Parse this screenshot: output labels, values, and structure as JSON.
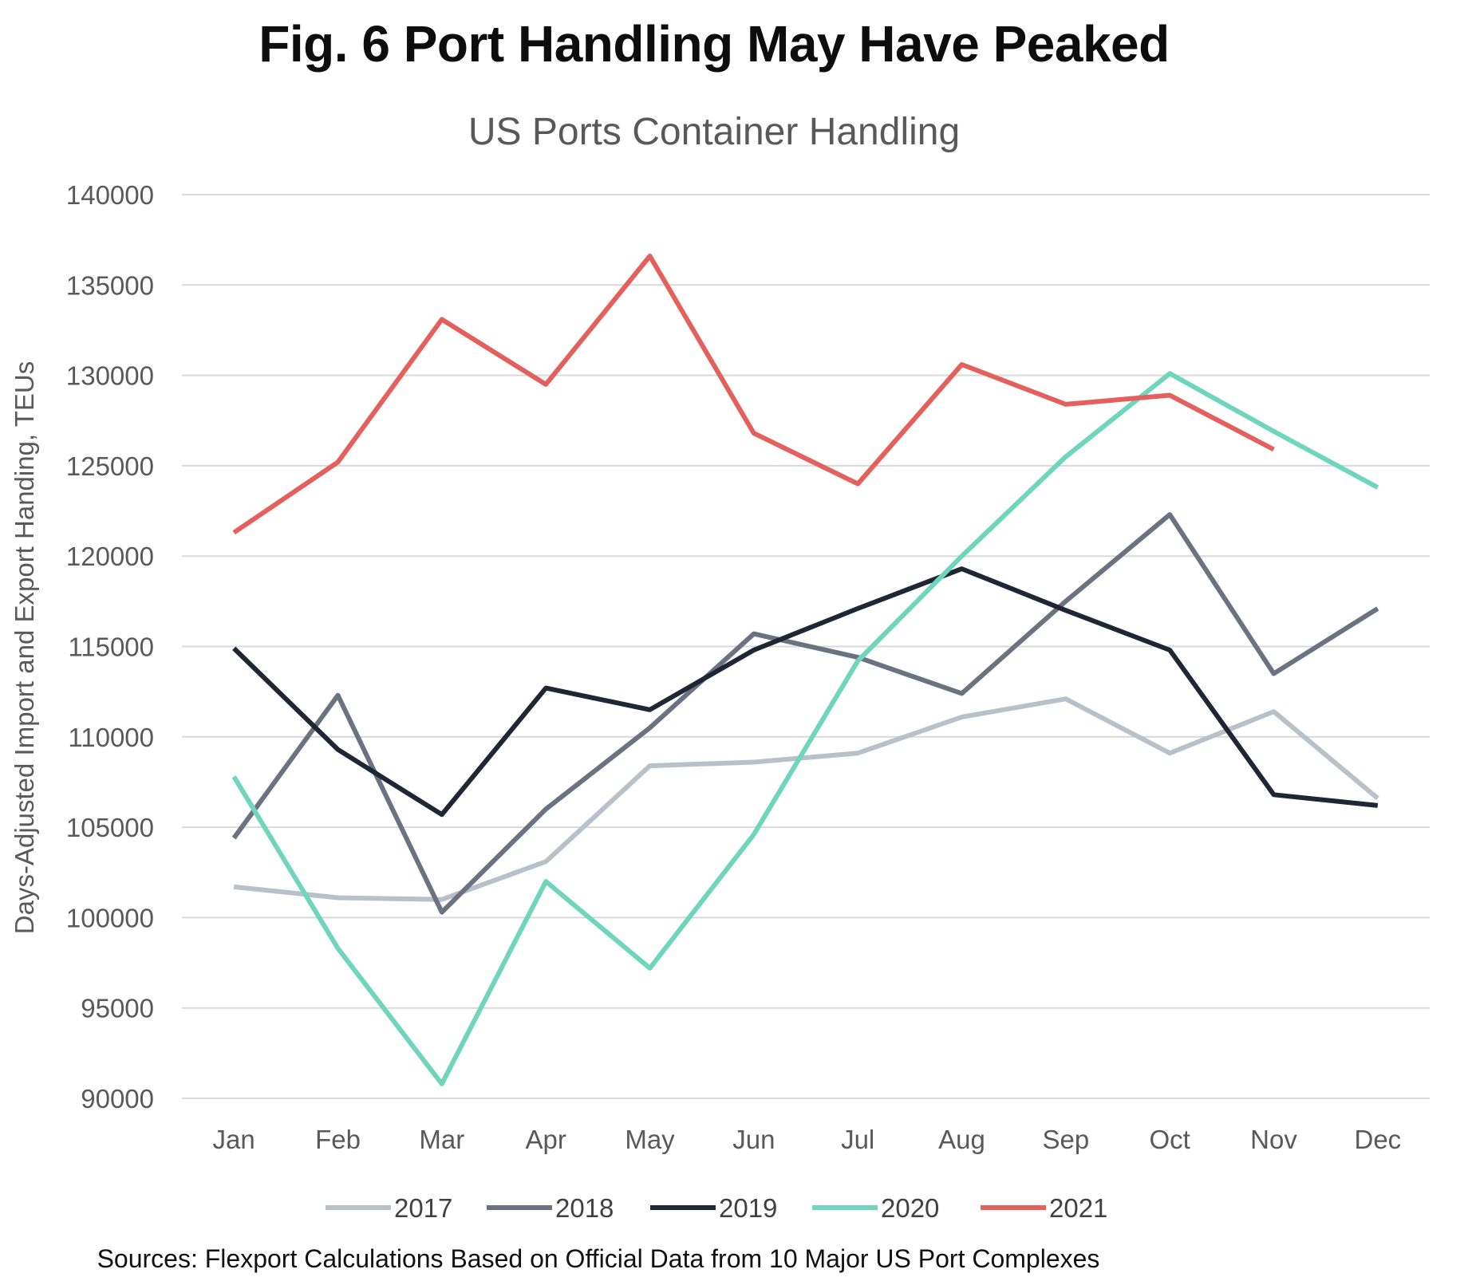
{
  "figure": {
    "title": "Fig. 6 Port Handling May Have Peaked",
    "source_note": "Sources: Flexport Calculations Based on Official Data from 10 Major US Port Complexes"
  },
  "chart_data": {
    "type": "line",
    "title": "US Ports Container Handling",
    "xlabel": "",
    "ylabel": "Days-Adjusted Import and Export Handing, TEUs",
    "categories": [
      "Jan",
      "Feb",
      "Mar",
      "Apr",
      "May",
      "Jun",
      "Jul",
      "Aug",
      "Sep",
      "Oct",
      "Nov",
      "Dec"
    ],
    "ylim": [
      90000,
      140000
    ],
    "yticks": [
      90000,
      95000,
      100000,
      105000,
      110000,
      115000,
      120000,
      125000,
      130000,
      135000,
      140000
    ],
    "ytick_labels": [
      "90000",
      "95000",
      "100000",
      "105000",
      "110000",
      "115000",
      "120000",
      "125000",
      "130000",
      "135000",
      "140000"
    ],
    "grid": "horizontal",
    "legend_position": "bottom",
    "series": [
      {
        "name": "2017",
        "color": "#b8c0c9",
        "values": [
          101700,
          101100,
          101000,
          103100,
          108400,
          108600,
          109100,
          111100,
          112100,
          109100,
          111400,
          106600
        ]
      },
      {
        "name": "2018",
        "color": "#6b7380",
        "values": [
          104400,
          112300,
          100300,
          106000,
          110500,
          115700,
          114400,
          112400,
          117500,
          122300,
          113500,
          117100
        ]
      },
      {
        "name": "2019",
        "color": "#1e2733",
        "values": [
          114900,
          109300,
          105700,
          112700,
          111500,
          114800,
          117100,
          119300,
          117000,
          114800,
          106800,
          106200
        ]
      },
      {
        "name": "2020",
        "color": "#6fd5bd",
        "values": [
          107800,
          98300,
          90800,
          102000,
          97200,
          104600,
          114200,
          120000,
          125500,
          130100,
          126900,
          123800
        ]
      },
      {
        "name": "2021",
        "color": "#e4605c",
        "values": [
          121300,
          125200,
          133100,
          129500,
          136600,
          126800,
          124000,
          130600,
          128400,
          128900,
          125900,
          null
        ]
      }
    ]
  }
}
